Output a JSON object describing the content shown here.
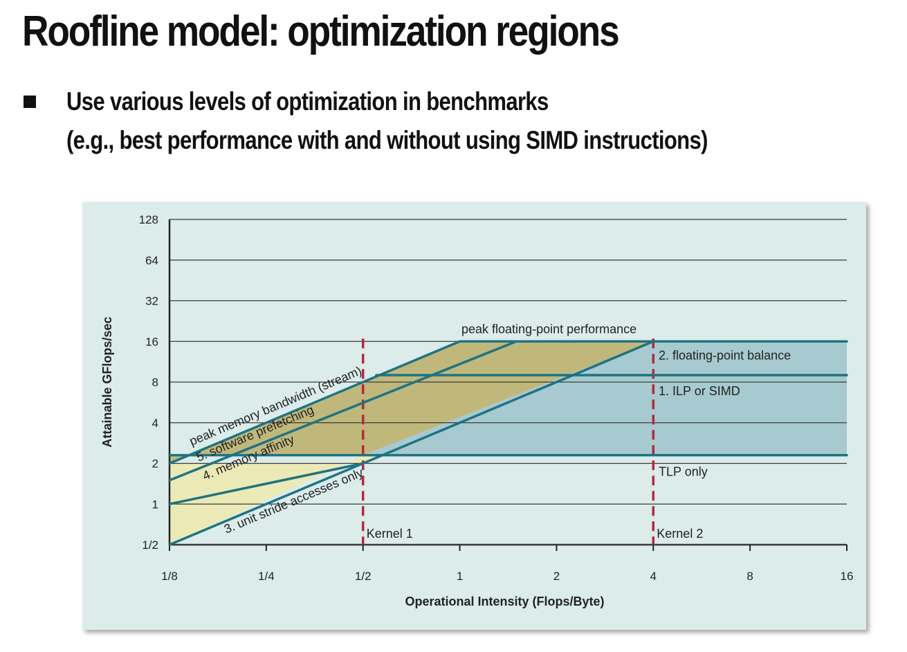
{
  "slide": {
    "title": "Roofline model: optimization regions",
    "bullet_line1": "Use various levels of optimization in benchmarks",
    "bullet_line2": "(e.g., best performance with and without using SIMD instructions)"
  },
  "chart_data": {
    "type": "line",
    "xlabel": "Operational Intensity (Flops/Byte)",
    "ylabel": "Attainable GFlops/sec",
    "x_scale": "log2",
    "y_scale": "log2",
    "xlim": [
      0.125,
      16
    ],
    "ylim": [
      0.5,
      128
    ],
    "x_ticks": [
      "1/8",
      "1/4",
      "1/2",
      "1",
      "2",
      "4",
      "8",
      "16"
    ],
    "y_ticks": [
      "1/2",
      "1",
      "2",
      "4",
      "8",
      "16",
      "32",
      "64",
      "128"
    ],
    "grid": "horizontal",
    "series": [
      {
        "name": "peak memory bandwidth (stream)",
        "x": [
          0.125,
          1
        ],
        "y": [
          2,
          16
        ]
      },
      {
        "name": "5. software prefetching",
        "x": [
          0.125,
          1.5
        ],
        "y": [
          1.5,
          16
        ]
      },
      {
        "name": "4. memory affinity",
        "x": [
          0.125,
          0.5
        ],
        "y": [
          1,
          2
        ]
      },
      {
        "name": "3. unit stride accesses only",
        "x": [
          0.125,
          4
        ],
        "y": [
          0.5,
          16
        ]
      },
      {
        "name": "peak floating-point performance",
        "x": [
          1,
          16
        ],
        "y": [
          16,
          16
        ]
      },
      {
        "name": "1. ILP or SIMD",
        "x": [
          0.55,
          16
        ],
        "y": [
          9,
          9
        ]
      },
      {
        "name": "TLP only",
        "x": [
          0.125,
          16
        ],
        "y": [
          2.3,
          2.3
        ]
      }
    ],
    "kernels": [
      {
        "name": "Kernel 1",
        "x": 0.5
      },
      {
        "name": "Kernel 2",
        "x": 4
      }
    ],
    "annotations": [
      {
        "text": "peak floating-point performance"
      },
      {
        "text": "2. floating-point balance"
      },
      {
        "text": "1. ILP or SIMD"
      },
      {
        "text": "TLP only"
      },
      {
        "text": "peak memory bandwidth (stream)"
      },
      {
        "text": "5. software prefetching"
      },
      {
        "text": "4. memory affinity"
      },
      {
        "text": "3. unit stride accesses only"
      }
    ],
    "colors": {
      "roof_line": "#1f7381",
      "grid": "#3a3a3a",
      "kernel_line": "#b5283c",
      "memory_region": "#bdb36f",
      "compute_region": "#9fc7d1",
      "light_region": "#eceab0",
      "background": "#dbeceb"
    }
  }
}
